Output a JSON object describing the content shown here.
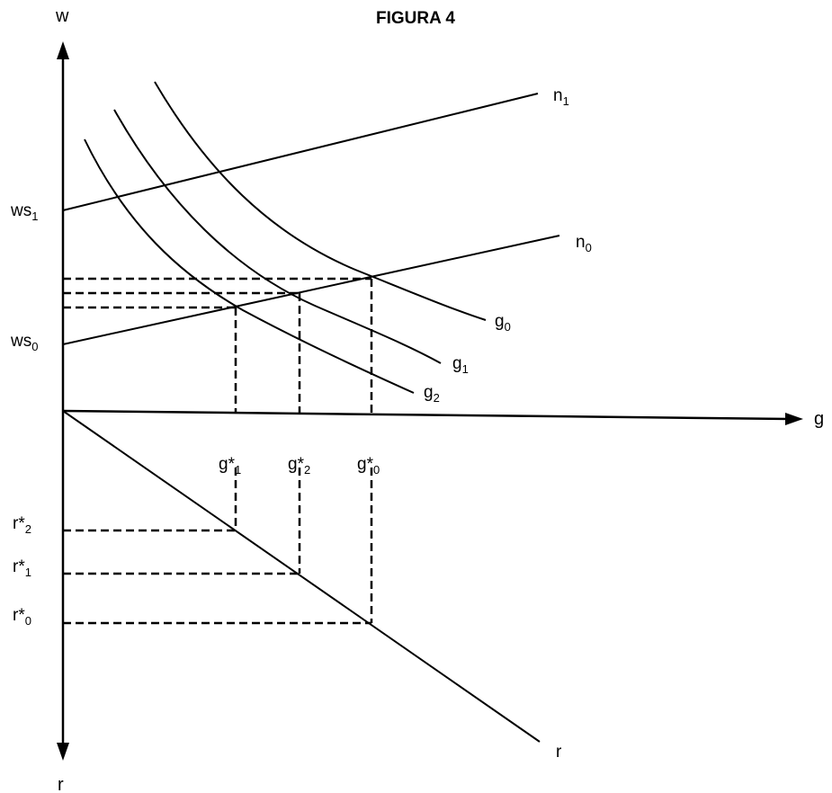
{
  "title": "FIGURA 4",
  "axes": {
    "w": "w",
    "r": "r",
    "g": "g"
  },
  "intercepts": [
    {
      "base": "ws",
      "sub": "1"
    },
    {
      "base": "ws",
      "sub": "0"
    }
  ],
  "lines": [
    {
      "base": "n",
      "sub": "1"
    },
    {
      "base": "n",
      "sub": "0"
    },
    {
      "base": "r",
      "sub": ""
    }
  ],
  "curves": [
    {
      "base": "g",
      "sub": "0"
    },
    {
      "base": "g",
      "sub": "1"
    },
    {
      "base": "g",
      "sub": "2"
    }
  ],
  "g_ticks": [
    {
      "base": "g*",
      "sub": "1"
    },
    {
      "base": "g*",
      "sub": "2"
    },
    {
      "base": "g*",
      "sub": "0"
    }
  ],
  "r_ticks": [
    {
      "base": "r*",
      "sub": "2"
    },
    {
      "base": "r*",
      "sub": "1"
    },
    {
      "base": "r*",
      "sub": "0"
    }
  ]
}
